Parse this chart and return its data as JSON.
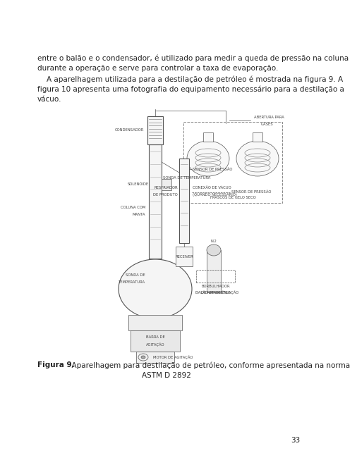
{
  "background_color": "#ffffff",
  "page_number": "33",
  "para1_l1": "entre o balão e o condensador, é utilizado para medir a queda de pressão na coluna",
  "para1_l2": "durante a operação e serve para controlar a taxa de evaporação.",
  "para2_l1": "    A aparelhagem utilizada para a destilação de petróleo é mostrada na figura 9. A",
  "para2_l2": "figura 10 apresenta uma fotografia do equipamento necessário para a destilação a",
  "para2_l3": "vácuo.",
  "caption_bold": "Figura 9.",
  "caption_rest": "  Aparelhagem para destilação de petróleo, conforme apresentada na norma",
  "caption_l2": "ASTM D 2892",
  "text_color": "#222222",
  "font_size_body": 7.5,
  "font_size_caption": 7.5,
  "font_size_label": 3.8,
  "font_size_page": 7.5,
  "text_color_label": "#444444"
}
